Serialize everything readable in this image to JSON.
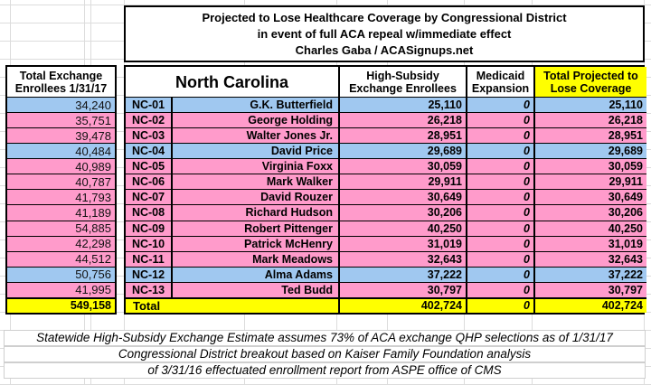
{
  "chart_data": {
    "type": "table",
    "title_lines": [
      "Projected to Lose Healthcare Coverage by Congressional District",
      "in event of full ACA repeal w/immediate effect",
      "Charles Gaba / ACASignups.net"
    ],
    "state_label": "North Carolina",
    "columns": {
      "left": "Total Exchange Enrollees 1/31/17",
      "high_subsidy": "High-Subsidy Exchange Enrollees",
      "medicaid": "Medicaid Expansion",
      "total_projected": "Total Projected to Lose Coverage"
    },
    "rows": [
      {
        "district": "NC-01",
        "representative": "G.K. Butterfield",
        "total_exchange": "34,240",
        "high_subsidy": "25,110",
        "medicaid": "0",
        "total_projected": "25,110",
        "color": "blue"
      },
      {
        "district": "NC-02",
        "representative": "George Holding",
        "total_exchange": "35,751",
        "high_subsidy": "26,218",
        "medicaid": "0",
        "total_projected": "26,218",
        "color": "pink"
      },
      {
        "district": "NC-03",
        "representative": "Walter Jones Jr.",
        "total_exchange": "39,478",
        "high_subsidy": "28,951",
        "medicaid": "0",
        "total_projected": "28,951",
        "color": "pink"
      },
      {
        "district": "NC-04",
        "representative": "David Price",
        "total_exchange": "40,484",
        "high_subsidy": "29,689",
        "medicaid": "0",
        "total_projected": "29,689",
        "color": "blue"
      },
      {
        "district": "NC-05",
        "representative": "Virginia Foxx",
        "total_exchange": "40,989",
        "high_subsidy": "30,059",
        "medicaid": "0",
        "total_projected": "30,059",
        "color": "pink"
      },
      {
        "district": "NC-06",
        "representative": "Mark Walker",
        "total_exchange": "40,787",
        "high_subsidy": "29,911",
        "medicaid": "0",
        "total_projected": "29,911",
        "color": "pink"
      },
      {
        "district": "NC-07",
        "representative": "David Rouzer",
        "total_exchange": "41,793",
        "high_subsidy": "30,649",
        "medicaid": "0",
        "total_projected": "30,649",
        "color": "pink"
      },
      {
        "district": "NC-08",
        "representative": "Richard Hudson",
        "total_exchange": "41,189",
        "high_subsidy": "30,206",
        "medicaid": "0",
        "total_projected": "30,206",
        "color": "pink"
      },
      {
        "district": "NC-09",
        "representative": "Robert Pittenger",
        "total_exchange": "54,885",
        "high_subsidy": "40,250",
        "medicaid": "0",
        "total_projected": "40,250",
        "color": "pink"
      },
      {
        "district": "NC-10",
        "representative": "Patrick McHenry",
        "total_exchange": "42,298",
        "high_subsidy": "31,019",
        "medicaid": "0",
        "total_projected": "31,019",
        "color": "pink"
      },
      {
        "district": "NC-11",
        "representative": "Mark Meadows",
        "total_exchange": "44,512",
        "high_subsidy": "32,643",
        "medicaid": "0",
        "total_projected": "32,643",
        "color": "pink"
      },
      {
        "district": "NC-12",
        "representative": "Alma Adams",
        "total_exchange": "50,756",
        "high_subsidy": "37,222",
        "medicaid": "0",
        "total_projected": "37,222",
        "color": "blue"
      },
      {
        "district": "NC-13",
        "representative": "Ted Budd",
        "total_exchange": "41,995",
        "high_subsidy": "30,797",
        "medicaid": "0",
        "total_projected": "30,797",
        "color": "pink"
      }
    ],
    "totals": {
      "label": "Total",
      "total_exchange": "549,158",
      "high_subsidy": "402,724",
      "medicaid": "0",
      "total_projected": "402,724"
    },
    "footnotes": [
      "Statewide High-Subsidy Exchange Estimate assumes 73% of ACA exchange QHP selections as of 1/31/17",
      "Congressional District breakout based on Kaiser Family Foundation analysis",
      "of 3/31/16 effectuated enrollment report from ASPE office of CMS"
    ],
    "colors": {
      "blue": "#A0C8F0",
      "pink": "#FF9BCB",
      "yellow": "#FFFF00"
    }
  }
}
